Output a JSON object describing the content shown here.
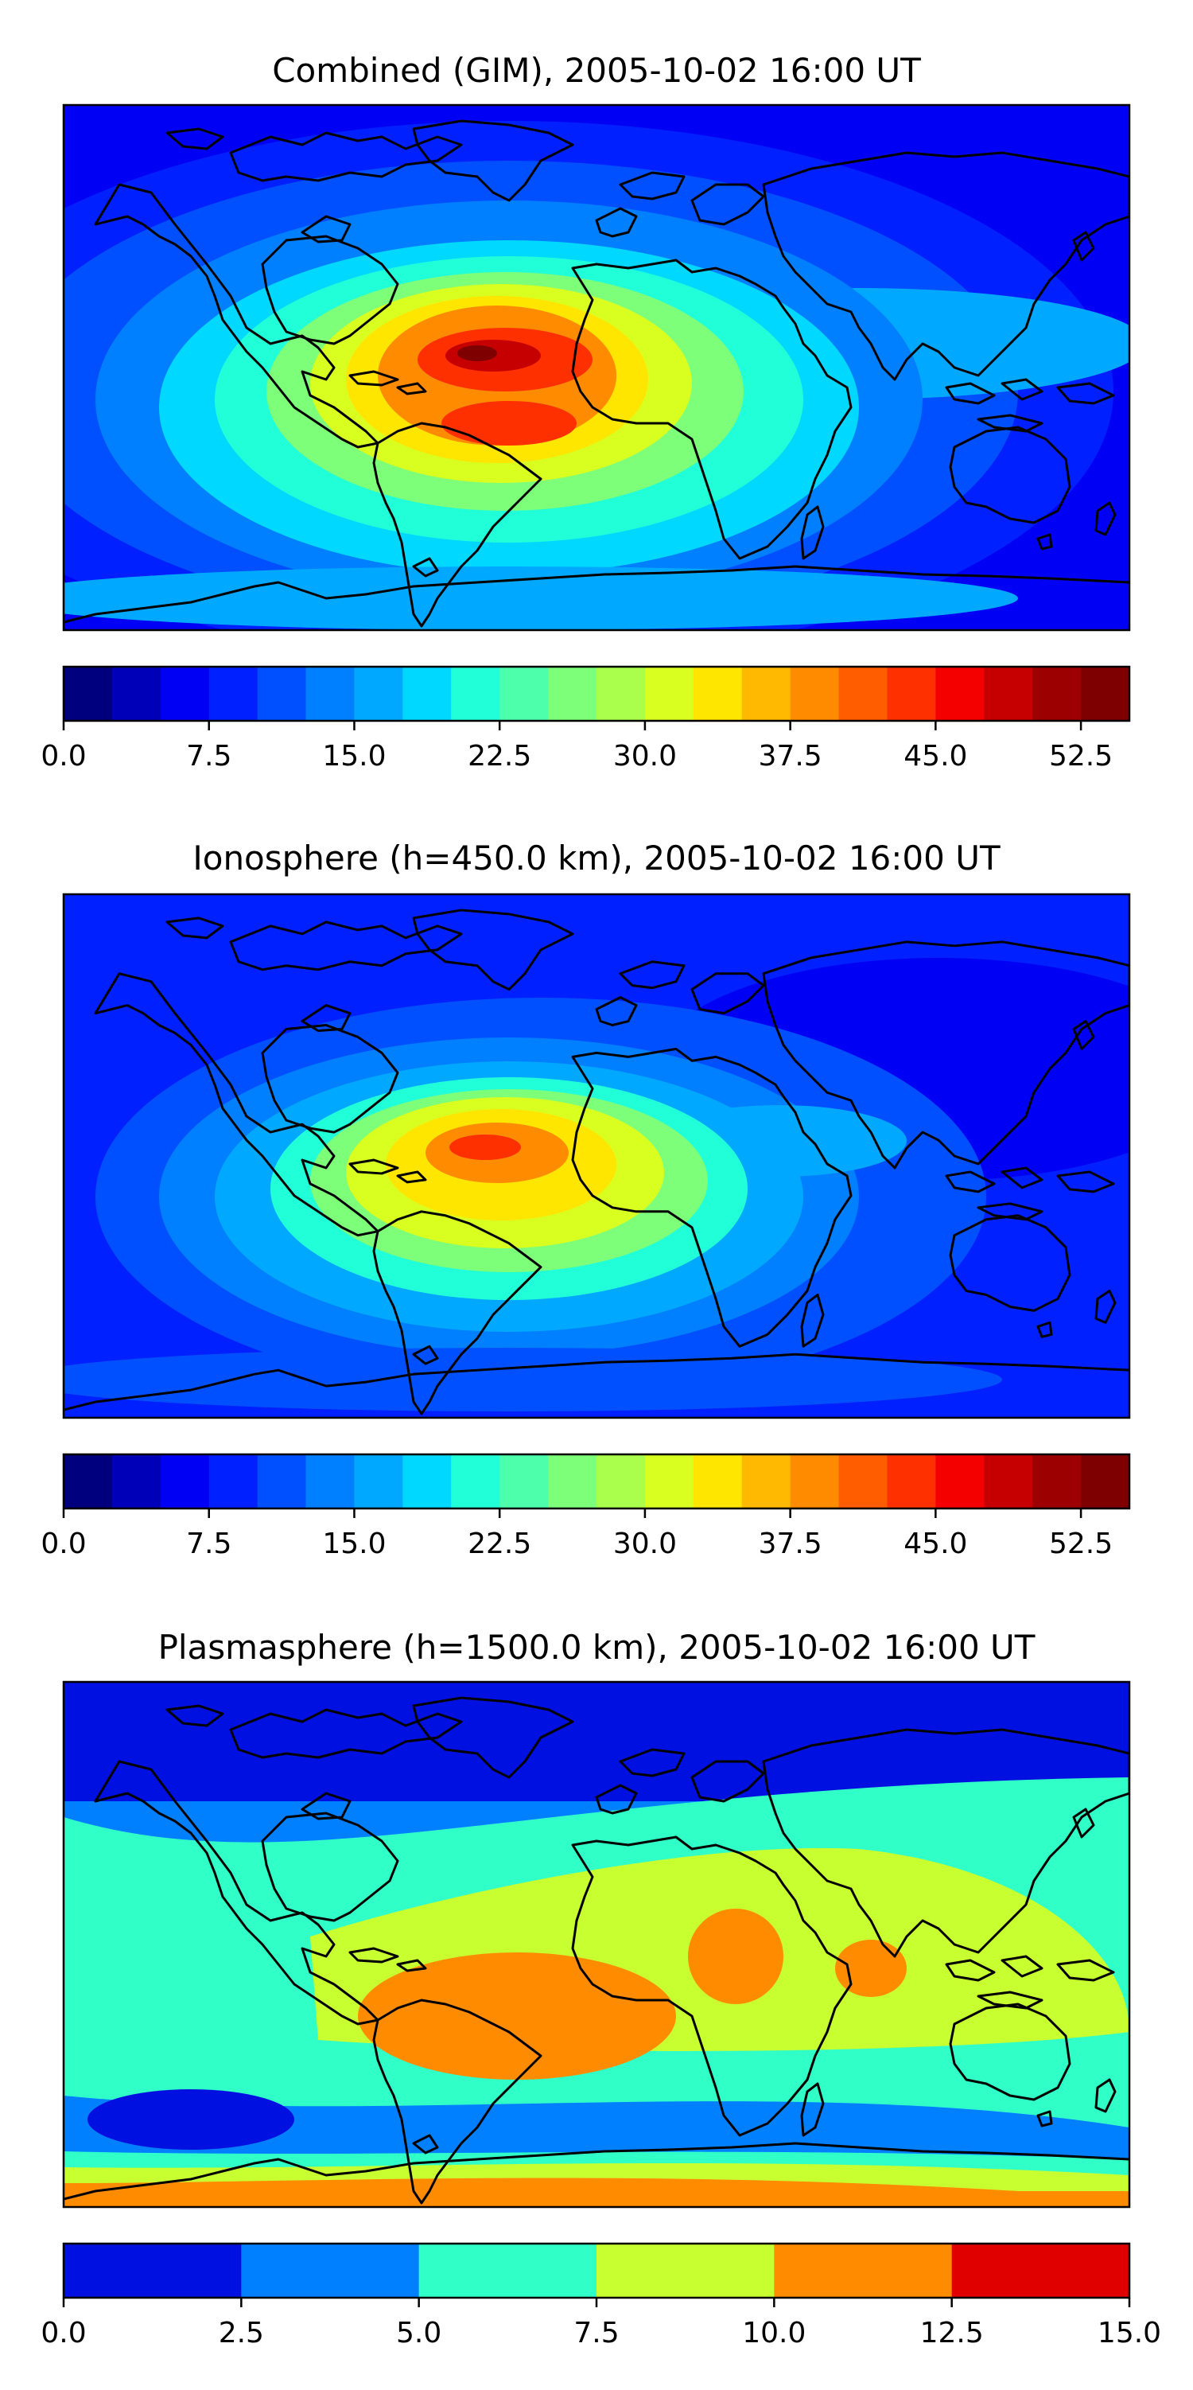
{
  "panels": [
    {
      "id": "combined",
      "title": "Combined (GIM), 2005-10-02 16:00 UT",
      "colorbar": {
        "ticks": [
          "0.0",
          "7.5",
          "15.0",
          "22.5",
          "30.0",
          "37.5",
          "45.0",
          "52.5"
        ],
        "min": 0,
        "max": 55,
        "step": 2.5,
        "tick_values": [
          0,
          7.5,
          15,
          22.5,
          30,
          37.5,
          45,
          52.5
        ]
      }
    },
    {
      "id": "ionosphere",
      "title": "Ionosphere  (h=450.0 km), 2005-10-02 16:00 UT",
      "colorbar": {
        "ticks": [
          "0.0",
          "7.5",
          "15.0",
          "22.5",
          "30.0",
          "37.5",
          "45.0",
          "52.5"
        ],
        "min": 0,
        "max": 55,
        "step": 2.5,
        "tick_values": [
          0,
          7.5,
          15,
          22.5,
          30,
          37.5,
          45,
          52.5
        ]
      }
    },
    {
      "id": "plasmasphere",
      "title": "Plasmasphere (h=1500.0 km), 2005-10-02 16:00 UT",
      "colorbar": {
        "ticks": [
          "0.0",
          "2.5",
          "5.0",
          "7.5",
          "10.0",
          "12.5",
          "15.0"
        ],
        "min": 0,
        "max": 15,
        "step": 2.5,
        "tick_values": [
          0,
          2.5,
          5,
          7.5,
          10,
          12.5,
          15
        ]
      }
    }
  ],
  "colors": {
    "jet22": [
      "#00007f",
      "#0000b8",
      "#0000f5",
      "#0020ff",
      "#0050ff",
      "#0080ff",
      "#00a8ff",
      "#00d8ff",
      "#20ffd8",
      "#4dffaa",
      "#7dff7a",
      "#aaff4d",
      "#d8ff20",
      "#ffe600",
      "#ffb900",
      "#ff8b00",
      "#ff5d00",
      "#ff3000",
      "#f50000",
      "#c60000",
      "#9c0000",
      "#7f0000"
    ],
    "jet6": [
      "#0010e0",
      "#0080ff",
      "#30ffc8",
      "#c8ff30",
      "#ff8c00",
      "#e00000"
    ],
    "coast": "#000000",
    "frame": "#000000"
  }
}
